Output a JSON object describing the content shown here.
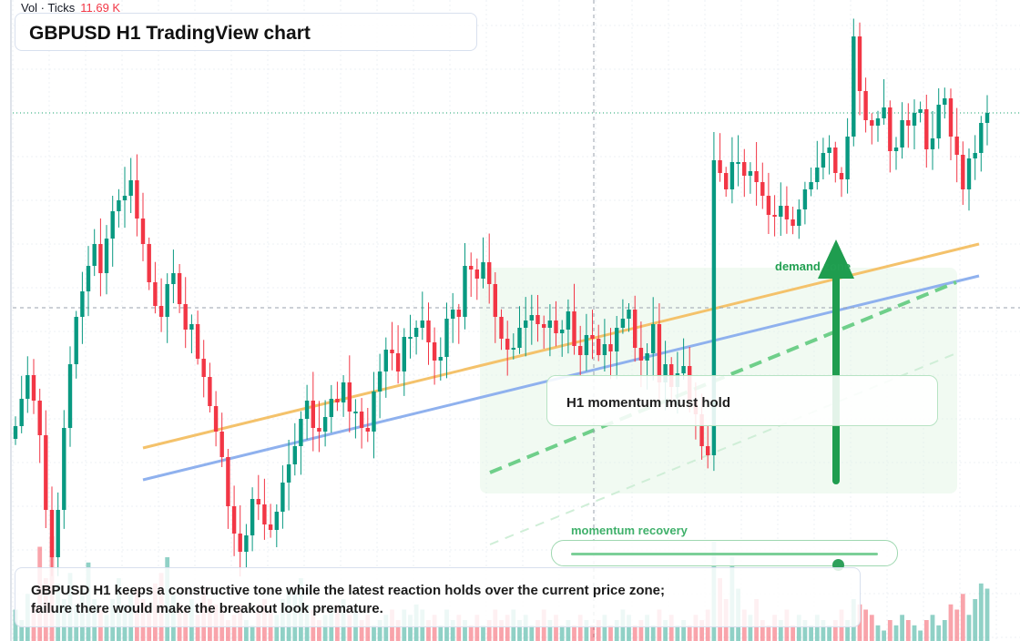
{
  "chart_data": {
    "type": "candlestick",
    "symbol": "GBPUSD",
    "timeframe": "H1",
    "title": "GBPUSD H1 TradingView chart",
    "grid": true,
    "y_axis": "unlabeled price scale",
    "colors": {
      "up": "#089981",
      "down": "#f23645",
      "channel_upper": "#f4c26b",
      "channel_lower": "#8fb1ee",
      "accent": "#22a052"
    },
    "volume_indicator": {
      "label": "Vol · Ticks",
      "value": "11.69 K"
    },
    "annotations": {
      "callout": "H1 momentum must hold",
      "zone_label": "demand zone",
      "slider_label": "momentum recovery",
      "slider_level": 0.87,
      "note": "GBPUSD H1 keeps a constructive tone while the latest reaction holds over the current price zone; failure there would make the breakout look premature."
    },
    "bars": {
      "closes": [
        468,
        438,
        412,
        440,
        478,
        560,
        612,
        560,
        470,
        400,
        348,
        320,
        292,
        268,
        300,
        262,
        232,
        220,
        215,
        198,
        240,
        268,
        310,
        336,
        348,
        312,
        300,
        334,
        362,
        356,
        394,
        414,
        446,
        474,
        502,
        556,
        586,
        606,
        588,
        548,
        554,
        576,
        582,
        562,
        530,
        510,
        490,
        460,
        440,
        470,
        474,
        458,
        438,
        442,
        420,
        452,
        452,
        470,
        474,
        430,
        408,
        384,
        388,
        408,
        370,
        370,
        360,
        352,
        376,
        396,
        392,
        350,
        340,
        348,
        292,
        296,
        306,
        288,
        312,
        348,
        372,
        384,
        382,
        360,
        352,
        346,
        356,
        360,
        352,
        366,
        362,
        342,
        380,
        390,
        368,
        372,
        390,
        378,
        386,
        360,
        350,
        340,
        382,
        396,
        388,
        356,
        420,
        400,
        425,
        410,
        402,
        440,
        455,
        490,
        500,
        176,
        190,
        208,
        178,
        178,
        193,
        188,
        200,
        215,
        236,
        238,
        226,
        241,
        248,
        230,
        208,
        200,
        184,
        168,
        162,
        190,
        197,
        150,
        40,
        100,
        132,
        138,
        130,
        118,
        166,
        162,
        132,
        138,
        124,
        120,
        164,
        152,
        115,
        108,
        150,
        170,
        208,
        174,
        168,
        135,
        124
      ],
      "volume_pct": [
        30,
        20,
        45,
        35,
        90,
        60,
        100,
        55,
        40,
        65,
        35,
        50,
        75,
        40,
        30,
        25,
        40,
        60,
        35,
        45,
        50,
        40,
        30,
        55,
        65,
        80,
        45,
        35,
        30,
        40,
        25,
        50,
        40,
        35,
        30,
        20,
        25,
        35,
        20,
        15,
        35,
        40,
        30,
        25,
        40,
        50,
        45,
        60,
        35,
        30,
        20,
        25,
        30,
        35,
        40,
        25,
        30,
        20,
        25,
        15,
        20,
        25,
        30,
        20,
        30,
        25,
        35,
        30,
        20,
        25,
        15,
        30,
        20,
        25,
        20,
        15,
        25,
        15,
        20,
        30,
        20,
        25,
        30,
        20,
        25,
        15,
        20,
        30,
        20,
        25,
        15,
        20,
        15,
        25,
        20,
        15,
        20,
        25,
        15,
        20,
        30,
        25,
        15,
        20,
        25,
        15,
        30,
        20,
        25,
        15,
        20,
        15,
        25,
        20,
        30,
        95,
        60,
        40,
        80,
        50,
        30,
        25,
        40,
        20,
        15,
        25,
        20,
        30,
        15,
        25,
        20,
        15,
        25,
        20,
        15,
        20,
        30,
        20,
        40,
        35,
        30,
        25,
        15,
        10,
        20,
        15,
        25,
        20,
        15,
        10,
        20,
        25,
        15,
        20,
        35,
        30,
        45,
        25,
        40,
        55,
        50
      ]
    }
  }
}
